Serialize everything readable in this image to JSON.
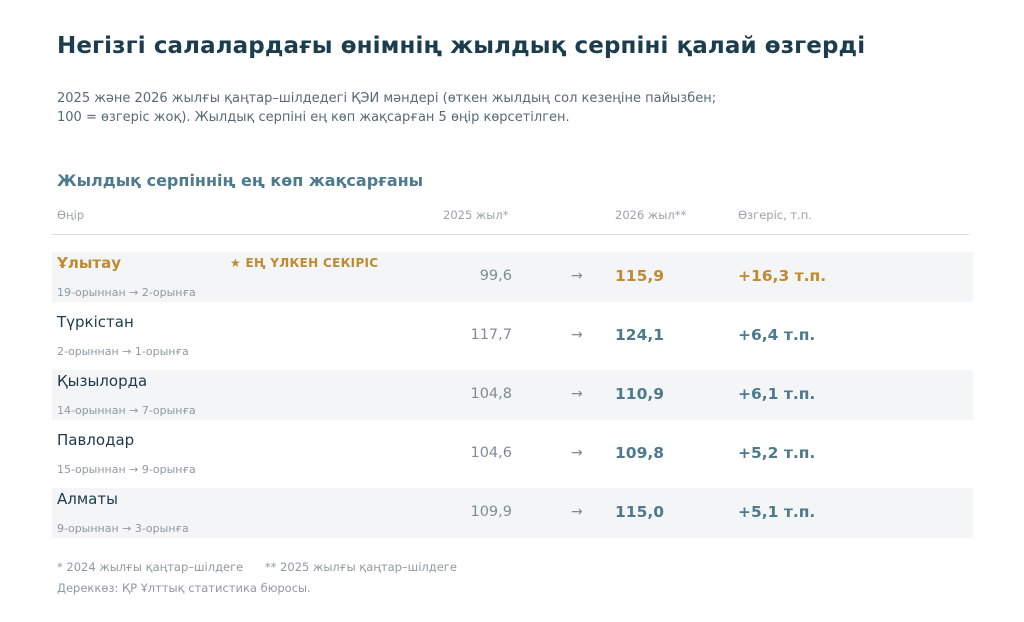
{
  "title": "Негізгі салалардағы өнімнің жылдық серпіні қалай өзгерді",
  "subtitle": {
    "line1": "2025 және 2026 жылғы қаңтар–шілдедегі ҚЭИ мәндері (өткен жылдың сол кезеңіне пайызбен;",
    "line2": "100 = өзгеріс жоқ). Жылдық серпіні ең көп жақсарған 5 өңір көрсетілген."
  },
  "section_title": "Жылдық серпіннің ең көп жақсарғаны",
  "columns": {
    "region": "Өңір",
    "y2025": "2025 жыл*",
    "y2026": "2026 жыл**",
    "change": "Өзгеріс, т.п."
  },
  "arrow_symbol": "→",
  "badge": "★ ЕҢ ҮЛКЕН СЕКІРІС",
  "colors": {
    "accent": "#c08a2e",
    "primary": "#4d7a8c",
    "title": "#1b3d4d",
    "row_shade": "#f3f5f6"
  },
  "chart_data": {
    "type": "table",
    "title": "Жылдық серпіннің ең көп жақсарғаны",
    "rows": [
      {
        "region": "Ұлытау",
        "rank_change": "19-орыннан → 2-орынға",
        "y2025": "99,6",
        "y2026": "115,9",
        "change": "+16,3 т.п.",
        "highlight": true
      },
      {
        "region": "Түркістан",
        "rank_change": "2-орыннан → 1-орынға",
        "y2025": "117,7",
        "y2026": "124,1",
        "change": "+6,4 т.п.",
        "highlight": false
      },
      {
        "region": "Қызылорда",
        "rank_change": "14-орыннан → 7-орынға",
        "y2025": "104,8",
        "y2026": "110,9",
        "change": "+6,1 т.п.",
        "highlight": false
      },
      {
        "region": "Павлодар",
        "rank_change": "15-орыннан → 9-орынға",
        "y2025": "104,6",
        "y2026": "109,8",
        "change": "+5,2 т.п.",
        "highlight": false
      },
      {
        "region": "Алматы",
        "rank_change": "9-орыннан → 3-орынға",
        "y2025": "109,9",
        "y2026": "115,0",
        "change": "+5,1 т.п.",
        "highlight": false
      }
    ]
  },
  "footnotes": {
    "note1": "* 2024 жылғы қаңтар–шілдеге",
    "note2": "** 2025 жылғы қаңтар–шілдеге"
  },
  "source": "Дереккөз: ҚР Ұлттық статистика бюросы."
}
